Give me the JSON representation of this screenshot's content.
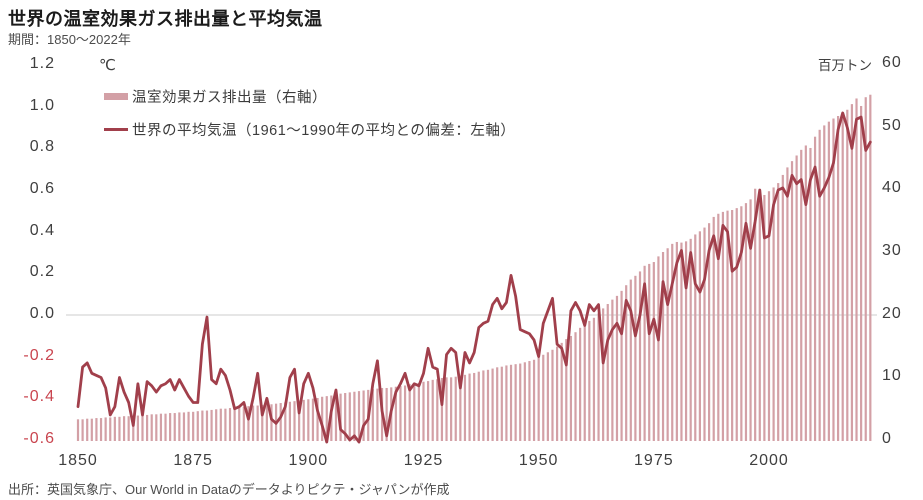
{
  "header": {
    "title": "世界の温室効果ガス排出量と平均気温",
    "subtitle": "期間：1850～2022年"
  },
  "footer": {
    "source": "出所：英国気象庁、Our World in Dataのデータよりピクテ・ジャパンが作成"
  },
  "legend": {
    "items": [
      {
        "label": "温室効果ガス排出量（右軸）",
        "swatch": "bar-swatch"
      },
      {
        "label": "世界の平均気温（1961～1990年の平均との偏差：左軸）",
        "swatch": "line-swatch"
      }
    ]
  },
  "axes": {
    "left": {
      "unit": "℃",
      "ticks": [
        "1.2",
        "1.0",
        "0.8",
        "0.6",
        "0.4",
        "0.2",
        "0.0",
        "-0.2",
        "-0.4",
        "-0.6"
      ]
    },
    "right": {
      "unit": "百万トン",
      "ticks": [
        "60",
        "50",
        "40",
        "30",
        "20",
        "10",
        "0"
      ]
    },
    "x": {
      "ticks": [
        "1850",
        "1875",
        "1900",
        "1925",
        "1950",
        "1975",
        "2000"
      ]
    }
  },
  "colors": {
    "bar": "#d3a0a6",
    "line": "#a13f4b",
    "negative_tick": "#c9454f",
    "gridline": "#cccccc",
    "title": "#1b1b1b",
    "text": "#4d4d4d"
  },
  "chart_data": {
    "type": "bar+line combo",
    "title": "世界の温室効果ガス排出量と平均気温",
    "subtitle": "期間：1850～2022年",
    "x_start_year": 1850,
    "x_end_year": 2022,
    "x_tick_labels": [
      1850,
      1875,
      1900,
      1925,
      1950,
      1975,
      2000
    ],
    "left_axis": {
      "label": "℃",
      "range": [
        -0.6,
        1.2
      ],
      "tick_step": 0.2
    },
    "right_axis": {
      "label": "百万トン",
      "range": [
        0,
        60
      ],
      "tick_step": 10
    },
    "grid": "single horizontal line at left 0.0 / right 20",
    "legend_position": "top-left inside plot",
    "series": [
      {
        "name": "温室効果ガス排出量（右軸）",
        "type": "bar",
        "axis": "right",
        "values": [
          3.3,
          3.3,
          3.4,
          3.4,
          3.5,
          3.5,
          3.6,
          3.6,
          3.7,
          3.7,
          3.8,
          3.8,
          3.9,
          3.9,
          4.0,
          4.0,
          4.1,
          4.1,
          4.2,
          4.2,
          4.3,
          4.3,
          4.4,
          4.4,
          4.5,
          4.5,
          4.6,
          4.7,
          4.7,
          4.8,
          4.9,
          5.0,
          5.0,
          5.1,
          5.2,
          5.2,
          5.3,
          5.4,
          5.5,
          5.5,
          5.6,
          5.7,
          5.7,
          5.8,
          5.9,
          6.0,
          6.1,
          6.2,
          6.3,
          6.4,
          6.5,
          6.6,
          6.7,
          6.9,
          7.0,
          7.1,
          7.2,
          7.4,
          7.5,
          7.6,
          7.7,
          7.8,
          7.9,
          8.0,
          8.1,
          8.2,
          8.3,
          8.3,
          8.4,
          8.5,
          8.6,
          8.7,
          8.9,
          9.0,
          9.1,
          9.3,
          9.4,
          9.6,
          9.7,
          9.9,
          10.0,
          10.0,
          10.1,
          10.3,
          10.4,
          10.6,
          10.7,
          10.9,
          11.1,
          11.2,
          11.4,
          11.6,
          11.7,
          11.9,
          12.0,
          12.1,
          12.2,
          12.4,
          12.6,
          12.8,
          13.1,
          13.6,
          14.0,
          14.4,
          14.9,
          15.5,
          16.1,
          16.6,
          17.2,
          17.9,
          18.6,
          19.0,
          19.5,
          20.2,
          21.0,
          21.7,
          22.4,
          23.0,
          23.8,
          24.7,
          25.6,
          26.2,
          26.9,
          27.8,
          28.1,
          28.4,
          29.3,
          30.0,
          30.6,
          31.3,
          31.6,
          31.5,
          31.7,
          32.1,
          32.8,
          33.3,
          33.9,
          34.6,
          35.6,
          36.1,
          36.4,
          36.6,
          36.7,
          37.0,
          37.3,
          37.8,
          38.4,
          40.1,
          38.9,
          39.1,
          39.7,
          40.3,
          41.0,
          42.3,
          43.5,
          44.5,
          45.4,
          46.3,
          47.0,
          46.6,
          48.4,
          49.5,
          50.2,
          50.8,
          51.3,
          51.7,
          52.0,
          52.7,
          53.6,
          54.5,
          53.3,
          54.7,
          55.1
        ]
      },
      {
        "name": "世界の平均気温（1961～1990年の平均との偏差：左軸）",
        "type": "line",
        "axis": "left",
        "values": [
          -0.44,
          -0.25,
          -0.23,
          -0.28,
          -0.29,
          -0.3,
          -0.35,
          -0.48,
          -0.44,
          -0.3,
          -0.37,
          -0.42,
          -0.53,
          -0.33,
          -0.48,
          -0.32,
          -0.34,
          -0.37,
          -0.34,
          -0.33,
          -0.31,
          -0.36,
          -0.31,
          -0.35,
          -0.39,
          -0.42,
          -0.42,
          -0.14,
          -0.01,
          -0.31,
          -0.33,
          -0.26,
          -0.29,
          -0.36,
          -0.45,
          -0.44,
          -0.42,
          -0.5,
          -0.4,
          -0.28,
          -0.48,
          -0.4,
          -0.5,
          -0.52,
          -0.49,
          -0.44,
          -0.3,
          -0.26,
          -0.47,
          -0.33,
          -0.28,
          -0.35,
          -0.46,
          -0.53,
          -0.61,
          -0.46,
          -0.36,
          -0.55,
          -0.57,
          -0.6,
          -0.58,
          -0.61,
          -0.53,
          -0.5,
          -0.33,
          -0.22,
          -0.46,
          -0.58,
          -0.46,
          -0.37,
          -0.33,
          -0.28,
          -0.36,
          -0.33,
          -0.34,
          -0.28,
          -0.16,
          -0.25,
          -0.26,
          -0.43,
          -0.19,
          -0.16,
          -0.18,
          -0.35,
          -0.18,
          -0.23,
          -0.18,
          -0.06,
          -0.04,
          -0.03,
          0.05,
          0.08,
          0.03,
          0.06,
          0.19,
          0.09,
          -0.07,
          -0.08,
          -0.09,
          -0.12,
          -0.2,
          -0.04,
          0.02,
          0.08,
          -0.14,
          -0.16,
          -0.24,
          0.02,
          0.06,
          0.02,
          -0.05,
          0.05,
          0.02,
          0.05,
          -0.23,
          -0.12,
          -0.07,
          -0.04,
          -0.09,
          0.07,
          0.02,
          -0.1,
          0.0,
          0.15,
          -0.09,
          -0.02,
          -0.12,
          0.16,
          0.05,
          0.15,
          0.25,
          0.31,
          0.13,
          0.3,
          0.15,
          0.11,
          0.17,
          0.31,
          0.38,
          0.27,
          0.43,
          0.4,
          0.21,
          0.23,
          0.3,
          0.44,
          0.32,
          0.45,
          0.6,
          0.37,
          0.38,
          0.53,
          0.6,
          0.61,
          0.57,
          0.67,
          0.63,
          0.65,
          0.53,
          0.65,
          0.71,
          0.57,
          0.61,
          0.66,
          0.73,
          0.89,
          0.97,
          0.9,
          0.8,
          0.94,
          0.95,
          0.79,
          0.83
        ]
      }
    ]
  }
}
